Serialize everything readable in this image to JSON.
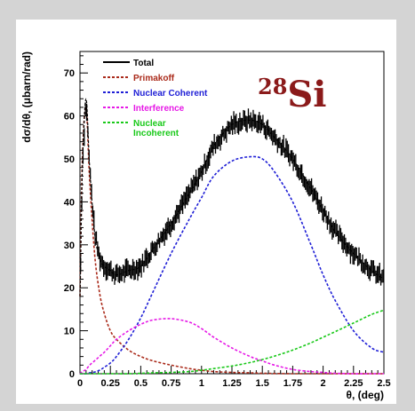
{
  "chart_data": {
    "type": "line",
    "title": "",
    "xlabel": "θ, (deg)",
    "ylabel": "dσ/dθ, (μbarn/rad)",
    "xlim": [
      0,
      2.5
    ],
    "ylim": [
      0,
      75
    ],
    "x_ticks": [
      "0",
      "0.25",
      "0.5",
      "0.75",
      "1",
      "1.25",
      "1.5",
      "1.75",
      "2",
      "2.25",
      "2.5"
    ],
    "y_ticks": [
      "0",
      "10",
      "20",
      "30",
      "40",
      "50",
      "60",
      "70"
    ],
    "legend_position": "top-left",
    "annotation": {
      "mass": "28",
      "symbol": "Si"
    },
    "x": [
      0.0,
      0.02,
      0.05,
      0.08,
      0.12,
      0.16,
      0.2,
      0.25,
      0.3,
      0.4,
      0.5,
      0.6,
      0.75,
      0.9,
      1.0,
      1.1,
      1.25,
      1.4,
      1.5,
      1.6,
      1.75,
      1.9,
      2.0,
      2.1,
      2.25,
      2.4,
      2.5
    ],
    "series": [
      {
        "name": "Total",
        "color": "#000000",
        "style": "data-with-errors",
        "values": [
          18,
          48,
          64,
          48,
          33,
          27,
          25,
          24,
          23,
          24,
          25,
          29,
          35,
          42,
          47,
          53,
          58,
          59,
          58,
          55,
          50,
          43,
          38,
          33,
          28,
          24,
          22
        ]
      },
      {
        "name": "Primakoff",
        "color": "#aa2a1a",
        "style": "dashed",
        "values": [
          18,
          50,
          62,
          45,
          28,
          19,
          14,
          10,
          8,
          5.5,
          4,
          3,
          2,
          1.2,
          0.8,
          0.5,
          0.3,
          0.2,
          0.1,
          0.05,
          0,
          0,
          0,
          0,
          0,
          0,
          0
        ]
      },
      {
        "name": "Nuclear Coherent",
        "color": "#1f1fd6",
        "style": "dashed",
        "values": [
          0,
          0,
          0,
          0.2,
          0.4,
          0.8,
          1.5,
          2.5,
          4,
          8,
          13,
          19,
          28,
          36,
          41,
          46,
          49.5,
          50.5,
          50,
          47,
          40,
          30,
          23,
          17,
          10,
          6,
          5
        ]
      },
      {
        "name": "Interference",
        "color": "#e619e6",
        "style": "dashed",
        "values": [
          0,
          0.5,
          1,
          2,
          3,
          4,
          5,
          6.5,
          8,
          10,
          11.5,
          12.5,
          12.8,
          12,
          10.5,
          8.5,
          6,
          4,
          3,
          2,
          1,
          0.5,
          0.3,
          0.1,
          0,
          0,
          0
        ]
      },
      {
        "name": "Nuclear Incoherent",
        "color": "#19c919",
        "style": "dashed",
        "values": [
          0,
          0,
          0,
          0,
          0,
          0,
          0,
          0,
          0,
          0,
          0.1,
          0.2,
          0.3,
          0.5,
          0.8,
          1.2,
          1.8,
          2.6,
          3.3,
          4.1,
          5.5,
          7.2,
          8.5,
          9.8,
          11.8,
          13.8,
          14.8
        ]
      }
    ]
  }
}
